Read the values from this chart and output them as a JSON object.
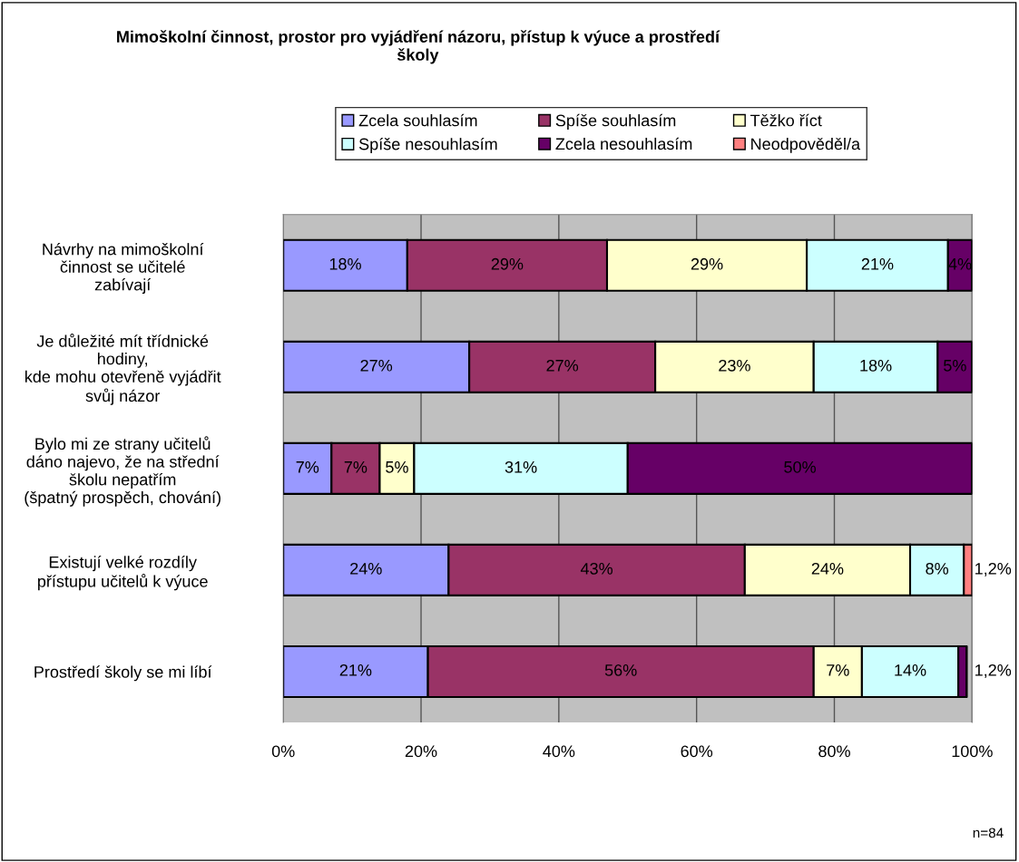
{
  "chart_data": {
    "type": "bar",
    "orientation": "horizontal",
    "stacked": true,
    "title": "Mimoškolní činnost, prostor pro vyjádření názoru, přístup k výuce a prostředí\nškoly",
    "categories": [
      "Návrhy na mimoškolní\nčinnost se učitelé\nzabívají",
      "Je důležité mít třídnické\nhodiny,\nkde mohu otevřeně vyjádřit\nsvůj názor",
      "Bylo mi ze strany učitelů\ndáno najevo, že na střední\nškolu nepatřím\n(špatný prospěch, chování)",
      "Existují velké rozdíly\npřístupu učitelů k výuce",
      "Prostředí školy se mi líbí"
    ],
    "series": [
      {
        "name": "Zcela souhlasím",
        "color": "#9999ff",
        "values": [
          18,
          27,
          7,
          24,
          21
        ],
        "value_labels": [
          "18%",
          "27%",
          "7%",
          "24%",
          "21%"
        ]
      },
      {
        "name": "Spíše souhlasím",
        "color": "#993366",
        "values": [
          29,
          27,
          7,
          43,
          56
        ],
        "value_labels": [
          "29%",
          "27%",
          "7%",
          "43%",
          "56%"
        ]
      },
      {
        "name": "Těžko říct",
        "color": "#ffffcc",
        "values": [
          29,
          23,
          5,
          24,
          7
        ],
        "value_labels": [
          "29%",
          "23%",
          "5%",
          "24%",
          "7%"
        ]
      },
      {
        "name": "Spíše nesouhlasím",
        "color": "#ccffff",
        "values": [
          20.5,
          18,
          31,
          7.8,
          14
        ],
        "value_labels": [
          "21%",
          "18%",
          "31%",
          "8%",
          "14%"
        ]
      },
      {
        "name": "Zcela nesouhlasím",
        "color": "#660066",
        "values": [
          3.5,
          5,
          50,
          null,
          1.2
        ],
        "value_labels": [
          "4%",
          "5%",
          "50%",
          null,
          "1,2%"
        ]
      },
      {
        "name": "Neodpověděl/a",
        "color": "#ff8080",
        "values": [
          null,
          null,
          null,
          1.2,
          null
        ],
        "value_labels": [
          null,
          null,
          null,
          "1,2%",
          null
        ]
      }
    ],
    "xlim": [
      0,
      100
    ],
    "xticks": [
      {
        "value": 0,
        "label": "0%"
      },
      {
        "value": 20,
        "label": "20%"
      },
      {
        "value": 40,
        "label": "40%"
      },
      {
        "value": 60,
        "label": "60%"
      },
      {
        "value": 80,
        "label": "80%"
      },
      {
        "value": 100,
        "label": "100%"
      }
    ],
    "grid": "x",
    "legend": "top",
    "annotations": [
      "n=84"
    ]
  }
}
